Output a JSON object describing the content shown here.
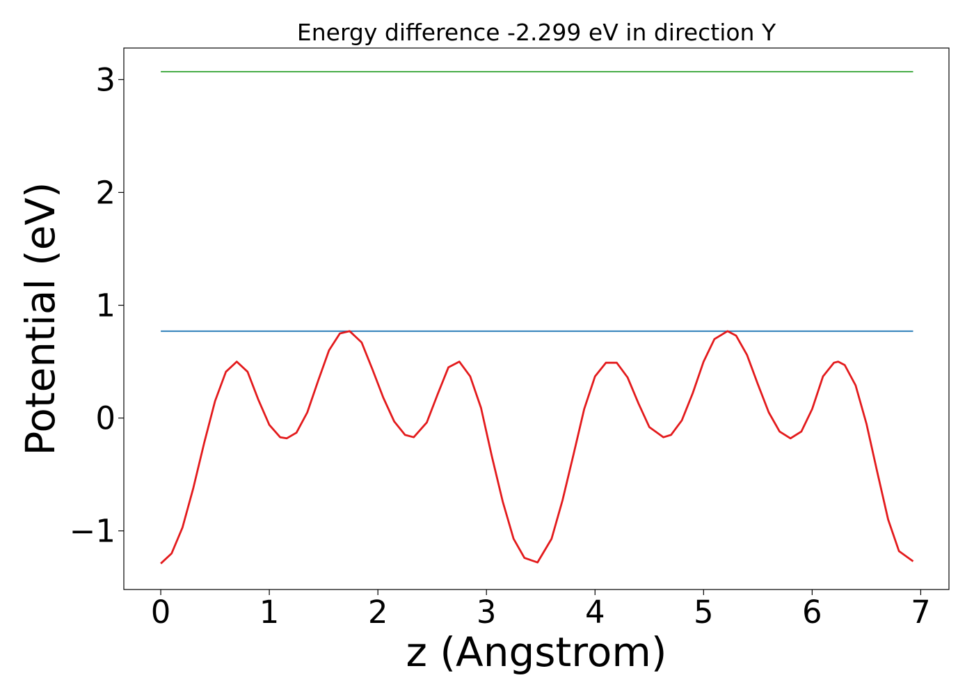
{
  "chart_data": {
    "type": "line",
    "title": "Energy difference -2.299 eV in direction Y",
    "xlabel": "z (Angstrom)",
    "ylabel": "Potential (eV)",
    "xlim": [
      -0.34,
      7.26
    ],
    "ylim": [
      -1.52,
      3.28
    ],
    "xticks": [
      0,
      1,
      2,
      3,
      4,
      5,
      6,
      7
    ],
    "xtick_labels": [
      "0",
      "1",
      "2",
      "3",
      "4",
      "5",
      "6",
      "7"
    ],
    "yticks": [
      -1,
      0,
      1,
      2,
      3
    ],
    "ytick_labels": [
      "−1",
      "0",
      "1",
      "2",
      "3"
    ],
    "grid": false,
    "legend": "none",
    "series": [
      {
        "color": "#2ca02c",
        "x": [
          0,
          6.93
        ],
        "y": [
          3.07,
          3.07
        ]
      },
      {
        "color": "#1f77b4",
        "x": [
          0,
          6.93
        ],
        "y": [
          0.77,
          0.77
        ]
      },
      {
        "color": "#e31a1c",
        "x": [
          0.0,
          0.1,
          0.2,
          0.3,
          0.4,
          0.5,
          0.6,
          0.7,
          0.8,
          0.9,
          1.0,
          1.1,
          1.16,
          1.25,
          1.35,
          1.45,
          1.55,
          1.65,
          1.74,
          1.85,
          1.95,
          2.05,
          2.15,
          2.25,
          2.33,
          2.45,
          2.55,
          2.65,
          2.75,
          2.85,
          2.95,
          3.05,
          3.15,
          3.25,
          3.35,
          3.47,
          3.6,
          3.7,
          3.8,
          3.9,
          4.0,
          4.1,
          4.2,
          4.3,
          4.4,
          4.5,
          4.63,
          4.7,
          4.8,
          4.9,
          5.0,
          5.1,
          5.22,
          5.3,
          5.4,
          5.5,
          5.6,
          5.7,
          5.8,
          5.9,
          6.0,
          6.1,
          6.2,
          6.24,
          6.3,
          6.4,
          6.5,
          6.6,
          6.7,
          6.8,
          6.93
        ],
        "y": [
          -1.29,
          -1.2,
          -0.97,
          -0.62,
          -0.22,
          0.15,
          0.41,
          0.5,
          0.41,
          0.16,
          -0.06,
          -0.17,
          -0.18,
          -0.13,
          0.05,
          0.33,
          0.6,
          0.75,
          0.77,
          0.67,
          0.43,
          0.18,
          -0.03,
          -0.15,
          -0.17,
          -0.04,
          0.21,
          0.45,
          0.5,
          0.37,
          0.09,
          -0.34,
          -0.74,
          -1.07,
          -1.24,
          -1.28,
          -1.07,
          -0.73,
          -0.33,
          0.08,
          0.37,
          0.49,
          0.49,
          0.36,
          0.13,
          -0.08,
          -0.17,
          -0.15,
          -0.02,
          0.22,
          0.5,
          0.7,
          0.77,
          0.73,
          0.56,
          0.3,
          0.05,
          -0.12,
          -0.18,
          -0.12,
          0.08,
          0.37,
          0.49,
          0.5,
          0.47,
          0.29,
          -0.05,
          -0.48,
          -0.9,
          -1.18,
          -1.27
        ]
      }
    ]
  }
}
